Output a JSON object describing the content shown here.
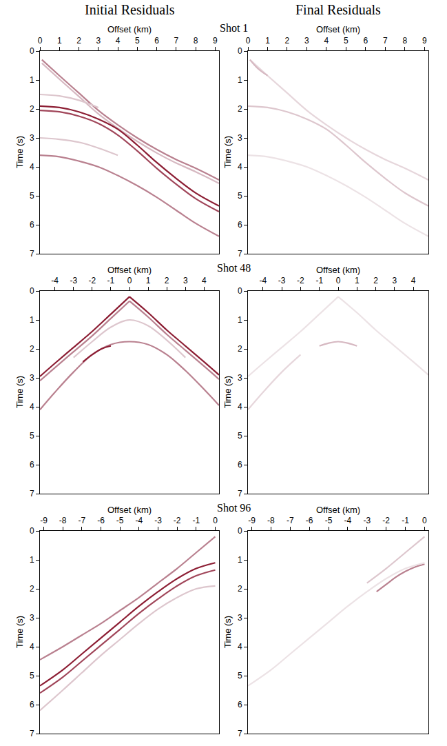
{
  "column_titles": [
    "Initial Residuals",
    "Final Residuals"
  ],
  "row_titles": [
    "Shot 1",
    "Shot 48",
    "Shot 96"
  ],
  "chart_data": [
    {
      "type": "line",
      "xlabel": "Offset (km)",
      "ylabel": "Time (s)",
      "xlim": [
        0,
        9.2
      ],
      "ylim": [
        0,
        7
      ],
      "xticks": [
        0,
        1,
        2,
        3,
        4,
        5,
        6,
        7,
        8,
        9
      ],
      "yticks": [
        0,
        1,
        2,
        3,
        4,
        5,
        6,
        7
      ],
      "grid": false,
      "series": [
        {
          "color": "#b9808f",
          "x": [
            0.1,
            1,
            2,
            3,
            4,
            5,
            6,
            7,
            8,
            9.2
          ],
          "values": [
            0.3,
            0.85,
            1.45,
            2.05,
            2.55,
            3.0,
            3.4,
            3.75,
            4.05,
            4.45
          ]
        },
        {
          "color": "#d6b8c1",
          "x": [
            0.1,
            1,
            2,
            3,
            4,
            5,
            6,
            7,
            8,
            9.2
          ],
          "values": [
            0.42,
            0.97,
            1.57,
            2.17,
            2.67,
            3.12,
            3.52,
            3.87,
            4.17,
            4.57
          ]
        },
        {
          "color": "#8c1d33",
          "x": [
            0,
            1,
            2,
            3,
            4,
            5,
            6,
            7,
            8,
            9.2
          ],
          "values": [
            1.9,
            1.95,
            2.1,
            2.35,
            2.7,
            3.25,
            3.85,
            4.4,
            4.9,
            5.35
          ]
        },
        {
          "color": "#a04559",
          "x": [
            0,
            1,
            2,
            3,
            4,
            5,
            6,
            7,
            8,
            9.2
          ],
          "values": [
            2.05,
            2.1,
            2.25,
            2.5,
            2.9,
            3.45,
            4.05,
            4.6,
            5.1,
            5.55
          ]
        },
        {
          "color": "#b9808f",
          "x": [
            0,
            1,
            2,
            3,
            4,
            5,
            6,
            7,
            8,
            9.2
          ],
          "values": [
            3.6,
            3.65,
            3.8,
            4.0,
            4.3,
            4.65,
            5.05,
            5.5,
            5.95,
            6.4
          ]
        },
        {
          "color": "#ddc6cd",
          "x": [
            0,
            1,
            2,
            3
          ],
          "values": [
            1.5,
            1.55,
            1.7,
            1.95
          ]
        },
        {
          "color": "#ddc6cd",
          "x": [
            0,
            1,
            2,
            3,
            4
          ],
          "values": [
            3.0,
            3.05,
            3.15,
            3.35,
            3.6
          ]
        }
      ]
    },
    {
      "type": "line",
      "xlabel": "Offset (km)",
      "ylabel": "Time (s)",
      "xlim": [
        0,
        9.2
      ],
      "ylim": [
        0,
        7
      ],
      "xticks": [
        0,
        1,
        2,
        3,
        4,
        5,
        6,
        7,
        8,
        9
      ],
      "yticks": [
        0,
        1,
        2,
        3,
        4,
        5,
        6,
        7
      ],
      "grid": false,
      "series": [
        {
          "color": "#e6d6db",
          "x": [
            0.1,
            1,
            2,
            3,
            4,
            5,
            6,
            7,
            8,
            9.2
          ],
          "values": [
            0.3,
            0.85,
            1.45,
            2.05,
            2.55,
            3.0,
            3.4,
            3.75,
            4.05,
            4.45
          ]
        },
        {
          "color": "#ddc6cd",
          "x": [
            0,
            1,
            2,
            3,
            4,
            5,
            6,
            7,
            8,
            9.2
          ],
          "values": [
            1.9,
            1.95,
            2.1,
            2.35,
            2.7,
            3.25,
            3.85,
            4.4,
            4.9,
            5.35
          ]
        },
        {
          "color": "#ece2e5",
          "x": [
            0,
            1,
            2,
            3,
            4,
            5,
            6,
            7,
            8,
            9.2
          ],
          "values": [
            3.6,
            3.65,
            3.8,
            4.0,
            4.3,
            4.65,
            5.05,
            5.5,
            5.95,
            6.4
          ]
        },
        {
          "color": "#d6b8c1",
          "x": [
            0.1,
            0.5,
            1
          ],
          "values": [
            0.3,
            0.6,
            0.85
          ]
        }
      ]
    },
    {
      "type": "line",
      "xlabel": "Offset (km)",
      "ylabel": "Time (s)",
      "xlim": [
        -4.8,
        4.8
      ],
      "ylim": [
        0,
        7
      ],
      "xticks": [
        -4,
        -3,
        -2,
        -1,
        0,
        1,
        2,
        3,
        4
      ],
      "yticks": [
        0,
        1,
        2,
        3,
        4,
        5,
        6,
        7
      ],
      "grid": false,
      "series": [
        {
          "color": "#8c1d33",
          "x": [
            0,
            -1,
            -2,
            -3,
            -4,
            -4.8
          ],
          "values": [
            0.2,
            0.8,
            1.4,
            1.95,
            2.5,
            2.95
          ]
        },
        {
          "color": "#b9808f",
          "x": [
            0,
            -1,
            -2,
            -3,
            -4,
            -4.8
          ],
          "values": [
            0.35,
            0.95,
            1.55,
            2.1,
            2.65,
            3.1
          ]
        },
        {
          "color": "#8c1d33",
          "x": [
            0,
            1,
            2,
            3,
            4,
            4.8
          ],
          "values": [
            0.2,
            0.75,
            1.35,
            1.9,
            2.45,
            2.9
          ]
        },
        {
          "color": "#b9808f",
          "x": [
            0,
            1,
            2,
            3,
            4,
            4.8
          ],
          "values": [
            0.35,
            0.9,
            1.5,
            2.05,
            2.6,
            3.05
          ]
        },
        {
          "color": "#b9808f",
          "x": [
            -4.8,
            -4,
            -3,
            -2,
            -1,
            0,
            1,
            2,
            3,
            4,
            4.8
          ],
          "values": [
            4.1,
            3.5,
            2.8,
            2.2,
            1.85,
            1.75,
            1.85,
            2.2,
            2.75,
            3.4,
            3.95
          ]
        },
        {
          "color": "#8c1d33",
          "x": [
            -2.5,
            -2,
            -1.5,
            -1
          ],
          "values": [
            2.45,
            2.2,
            2.0,
            1.9
          ]
        },
        {
          "color": "#ddc6cd",
          "x": [
            -3,
            -2,
            -1,
            0,
            1,
            2,
            3
          ],
          "values": [
            2.3,
            1.75,
            1.25,
            1.0,
            1.2,
            1.7,
            2.3
          ]
        }
      ]
    },
    {
      "type": "line",
      "xlabel": "Offset (km)",
      "ylabel": "Time (s)",
      "xlim": [
        -4.8,
        4.8
      ],
      "ylim": [
        0,
        7
      ],
      "xticks": [
        -4,
        -3,
        -2,
        -1,
        0,
        1,
        2,
        3,
        4
      ],
      "yticks": [
        0,
        1,
        2,
        3,
        4,
        5,
        6,
        7
      ],
      "grid": false,
      "series": [
        {
          "color": "#ece2e5",
          "x": [
            0,
            -1,
            -2,
            -3,
            -4,
            -4.8
          ],
          "values": [
            0.2,
            0.8,
            1.4,
            1.95,
            2.5,
            2.95
          ]
        },
        {
          "color": "#ece2e5",
          "x": [
            0,
            1,
            2,
            3,
            4,
            4.8
          ],
          "values": [
            0.2,
            0.75,
            1.35,
            1.9,
            2.45,
            2.9
          ]
        },
        {
          "color": "#d6b8c1",
          "x": [
            -1,
            -0.5,
            0,
            0.5,
            1
          ],
          "values": [
            1.9,
            1.8,
            1.75,
            1.8,
            1.9
          ]
        },
        {
          "color": "#e6d6db",
          "x": [
            -4.8,
            -4,
            -3,
            -2
          ],
          "values": [
            4.1,
            3.5,
            2.8,
            2.2
          ]
        }
      ]
    },
    {
      "type": "line",
      "xlabel": "Offset (km)",
      "ylabel": "Time (s)",
      "xlim": [
        -9.2,
        0.2
      ],
      "ylim": [
        0,
        7
      ],
      "xticks": [
        -9,
        -8,
        -7,
        -6,
        -5,
        -4,
        -3,
        -2,
        -1,
        0
      ],
      "yticks": [
        0,
        1,
        2,
        3,
        4,
        5,
        6,
        7
      ],
      "grid": false,
      "series": [
        {
          "color": "#b9808f",
          "x": [
            0,
            -1,
            -2,
            -3,
            -4,
            -5,
            -6,
            -7,
            -8,
            -9.2
          ],
          "values": [
            0.2,
            0.75,
            1.3,
            1.8,
            2.3,
            2.75,
            3.2,
            3.6,
            4.0,
            4.45
          ]
        },
        {
          "color": "#8c1d33",
          "x": [
            0,
            -1,
            -2,
            -3,
            -4,
            -5,
            -6,
            -7,
            -8,
            -9.2
          ],
          "values": [
            1.1,
            1.3,
            1.65,
            2.1,
            2.6,
            3.15,
            3.7,
            4.25,
            4.8,
            5.35
          ]
        },
        {
          "color": "#a04559",
          "x": [
            0,
            -1,
            -2,
            -3,
            -4,
            -5,
            -6,
            -7,
            -8,
            -9.2
          ],
          "values": [
            1.35,
            1.55,
            1.9,
            2.35,
            2.85,
            3.4,
            3.95,
            4.5,
            5.05,
            5.6
          ]
        },
        {
          "color": "#ddc6cd",
          "x": [
            0,
            -1,
            -2,
            -3,
            -4,
            -5,
            -6,
            -7,
            -8,
            -9.2
          ],
          "values": [
            1.9,
            2.0,
            2.3,
            2.7,
            3.2,
            3.75,
            4.3,
            4.9,
            5.5,
            6.2
          ]
        }
      ]
    },
    {
      "type": "line",
      "xlabel": "Offset (km)",
      "ylabel": "Time (s)",
      "xlim": [
        -9.2,
        0.2
      ],
      "ylim": [
        0,
        7
      ],
      "xticks": [
        -9,
        -8,
        -7,
        -6,
        -5,
        -4,
        -3,
        -2,
        -1,
        0
      ],
      "yticks": [
        0,
        1,
        2,
        3,
        4,
        5,
        6,
        7
      ],
      "grid": false,
      "series": [
        {
          "color": "#b9808f",
          "x": [
            -2.5,
            -2,
            -1.5,
            -1,
            -0.5,
            0
          ],
          "values": [
            2.1,
            1.85,
            1.6,
            1.4,
            1.25,
            1.15
          ]
        },
        {
          "color": "#ddc6cd",
          "x": [
            0,
            -1,
            -2,
            -3
          ],
          "values": [
            0.2,
            0.75,
            1.3,
            1.8
          ]
        },
        {
          "color": "#ece2e5",
          "x": [
            0,
            -1,
            -2,
            -3,
            -4,
            -5,
            -6,
            -7,
            -8,
            -9.2
          ],
          "values": [
            1.1,
            1.3,
            1.65,
            2.1,
            2.6,
            3.15,
            3.7,
            4.25,
            4.8,
            5.35
          ]
        }
      ]
    }
  ]
}
